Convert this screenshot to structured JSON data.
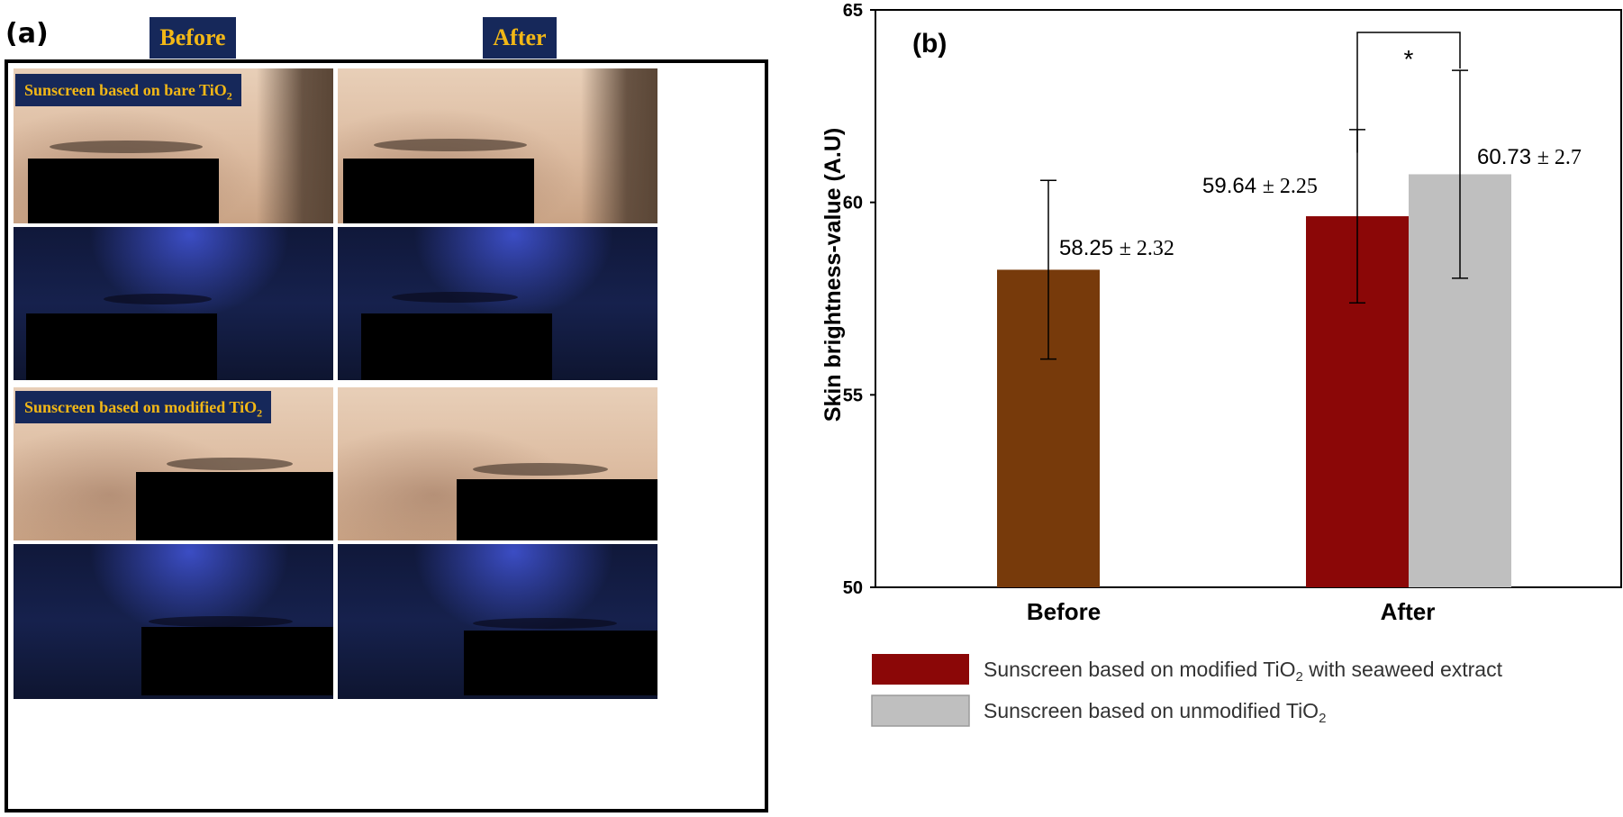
{
  "panel_a": {
    "label": "(a)",
    "col_before": "Before",
    "col_after": "After",
    "tag_bare_main": "Sunscreen based on bare TiO",
    "tag_bare_sub": "2",
    "tag_modified_main": "Sunscreen based on modified TiO",
    "tag_modified_sub": "2"
  },
  "chart_data": {
    "type": "bar",
    "panel_label": "(b)",
    "title": "",
    "xlabel": "",
    "ylabel": "Skin brightness-value (A.U)",
    "ylim": [
      50,
      65
    ],
    "yticks": [
      50,
      55,
      60,
      65
    ],
    "categories": [
      "Before",
      "After"
    ],
    "bars": [
      {
        "category": "Before",
        "value": 58.25,
        "error": 2.32,
        "label_value": "58.25",
        "label_err": "± 2.32",
        "color": "#773a0b"
      },
      {
        "category": "After",
        "series": "Sunscreen based on modified TiO2 with seaweed extract",
        "value": 59.64,
        "error": 2.25,
        "label_value": "59.64",
        "label_err": "± 2.25",
        "color": "#8b0707"
      },
      {
        "category": "After",
        "series": "Sunscreen based on unmodified TiO2",
        "value": 60.73,
        "error": 2.7,
        "label_value": "60.73",
        "label_err": "± 2.7",
        "color": "#bfbfbf"
      }
    ],
    "significance_marker": "*",
    "grid": false,
    "legend_position": "bottom",
    "legend": [
      {
        "name_main": "Sunscreen based on modified TiO",
        "name_sub": "2",
        "name_tail": " with seaweed extract",
        "color": "#8b0707"
      },
      {
        "name_main": "Sunscreen based on unmodified TiO",
        "name_sub": "2",
        "name_tail": "",
        "color": "#bfbfbf"
      }
    ]
  }
}
